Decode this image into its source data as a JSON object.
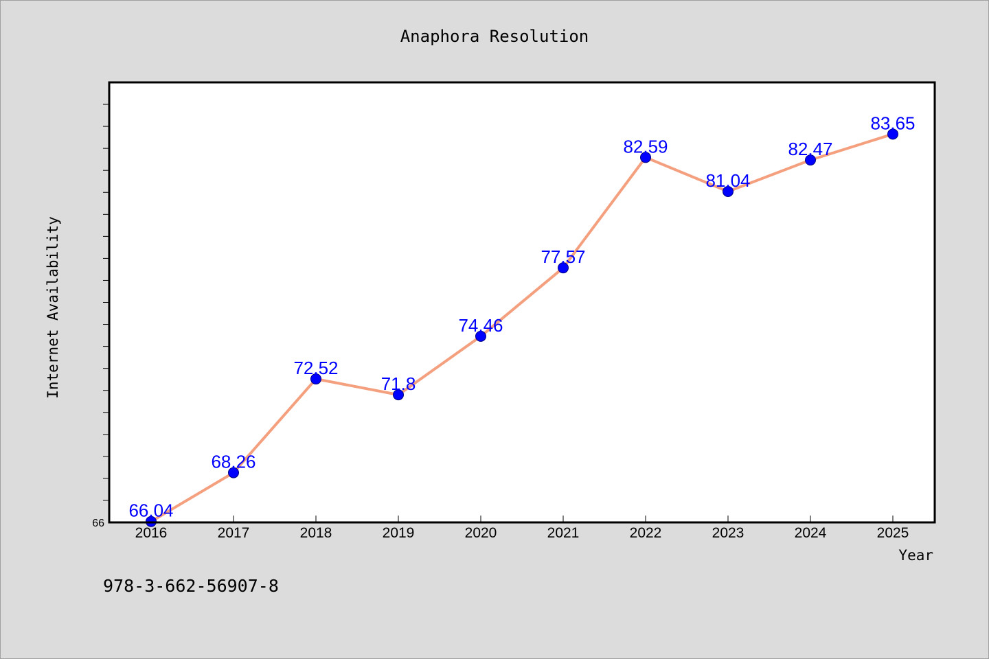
{
  "chart_data": {
    "type": "line",
    "title": "Anaphora Resolution",
    "xlabel": "Year",
    "ylabel": "Internet Availability",
    "categories": [
      "2016",
      "2017",
      "2018",
      "2019",
      "2020",
      "2021",
      "2022",
      "2023",
      "2024",
      "2025"
    ],
    "series": [
      {
        "values": [
          66.04,
          68.26,
          72.52,
          71.8,
          74.46,
          77.57,
          82.59,
          81.04,
          82.47,
          83.65
        ],
        "labels": [
          "66.04",
          "68.26",
          "72.52",
          "71.8",
          "74.46",
          "77.57",
          "82.59",
          "81.04",
          "82.47",
          "83.65"
        ],
        "line_color": "#f4a07f",
        "marker_color": "#0000ff",
        "label_color": "#0000ff"
      }
    ],
    "ylim": [
      66,
      86
    ],
    "y_tick_labels": [
      "66"
    ],
    "grid": false,
    "legend": "none",
    "footnote": "978-3-662-56907-8",
    "background_color": "#dcdcdc",
    "plot_background_color": "#ffffff"
  }
}
